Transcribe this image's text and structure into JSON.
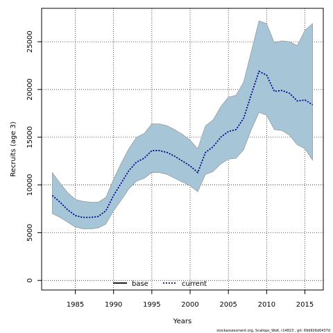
{
  "chart_data": {
    "type": "area",
    "title": "",
    "xlabel": "Years",
    "ylabel": "Recruits (age 3)",
    "xlim": [
      1980.6,
      2017.4
    ],
    "ylim": [
      -1000,
      28500
    ],
    "x_ticks": [
      1985,
      1990,
      1995,
      2000,
      2005,
      2010,
      2015
    ],
    "y_ticks": [
      0,
      5000,
      10000,
      15000,
      20000,
      25000
    ],
    "grid": true,
    "legend_position": "bottom-center",
    "legend": [
      {
        "label": "base",
        "style": "solid",
        "color": "#000000"
      },
      {
        "label": "current",
        "style": "dotted",
        "color": "#00008b"
      }
    ],
    "colors": {
      "band": "#a6c5d7",
      "band_edge": "#8a8a8a",
      "current_line": "#00008b",
      "grid": "#000000"
    },
    "x": [
      1982,
      1983,
      1984,
      1985,
      1986,
      1987,
      1988,
      1989,
      1990,
      1991,
      1992,
      1993,
      1994,
      1995,
      1996,
      1997,
      1998,
      1999,
      2000,
      2001,
      2002,
      2003,
      2004,
      2005,
      2006,
      2007,
      2008,
      2009,
      2010,
      2011,
      2012,
      2013,
      2014,
      2015,
      2016
    ],
    "series": [
      {
        "name": "current",
        "values": [
          8900,
          8200,
          7400,
          6800,
          6600,
          6600,
          6700,
          7300,
          8900,
          10200,
          11500,
          12400,
          12800,
          13600,
          13600,
          13400,
          13000,
          12500,
          12000,
          11300,
          13400,
          14000,
          15000,
          15600,
          15800,
          17000,
          19500,
          21900,
          21500,
          19800,
          19900,
          19600,
          18800,
          18900,
          18400
        ],
        "lower": [
          7000,
          6600,
          6100,
          5600,
          5400,
          5400,
          5500,
          5900,
          7300,
          8400,
          9600,
          10400,
          10700,
          11300,
          11300,
          11100,
          10700,
          10300,
          9900,
          9300,
          11100,
          11400,
          12200,
          12700,
          12800,
          13700,
          15800,
          17600,
          17300,
          15800,
          15700,
          15200,
          14200,
          13800,
          12600
        ],
        "upper": [
          11300,
          10200,
          9200,
          8500,
          8300,
          8200,
          8200,
          8700,
          10600,
          12300,
          13800,
          15000,
          15400,
          16400,
          16400,
          16200,
          15800,
          15300,
          14700,
          13800,
          16200,
          16800,
          18200,
          19200,
          19400,
          20800,
          24000,
          27200,
          26900,
          24900,
          25100,
          25000,
          24600,
          26200,
          26900
        ]
      }
    ],
    "footnote": "stockassessment.org, Scallops_WoK, r14823 , git: 69d926d0437d"
  }
}
